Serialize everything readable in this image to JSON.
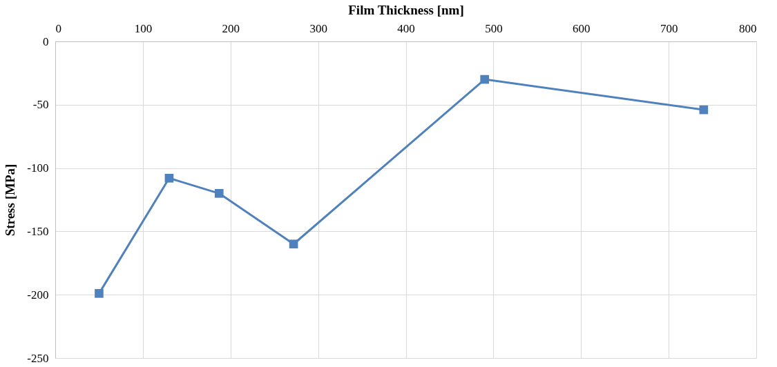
{
  "chart_data": {
    "type": "line",
    "xlabel": "Film Thickness [nm]",
    "ylabel": "Stress [MPa]",
    "x": [
      50,
      130,
      187,
      272,
      490,
      740
    ],
    "series": [
      {
        "color": "#4f81bd",
        "values": [
          -199,
          -108,
          -120,
          -160,
          -30,
          -54
        ]
      }
    ],
    "xlim": [
      0,
      800
    ],
    "xticks": [
      0,
      100,
      200,
      300,
      400,
      500,
      600,
      700,
      800
    ],
    "ylim": [
      -250,
      0
    ],
    "yticks": [
      -250,
      -200,
      -150,
      -100,
      -50,
      0
    ],
    "grid": true,
    "marker": "square",
    "line_style": "solid"
  }
}
